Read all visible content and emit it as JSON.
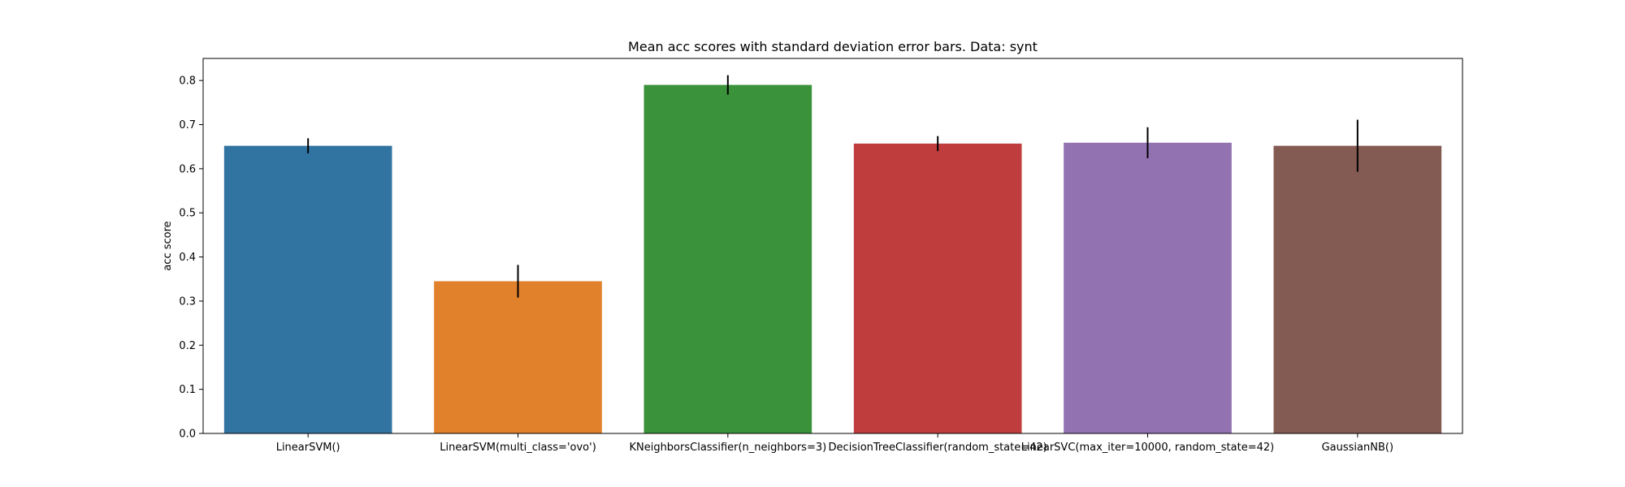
{
  "chart_data": {
    "type": "bar",
    "title": "Mean acc scores with standard deviation error bars. Data: synt",
    "xlabel": "",
    "ylabel": "acc score",
    "ylim": [
      0,
      0.85
    ],
    "yticks": [
      0.0,
      0.1,
      0.2,
      0.3,
      0.4,
      0.5,
      0.6,
      0.7,
      0.8
    ],
    "yticks_text": [
      "0.0",
      "0.1",
      "0.2",
      "0.3",
      "0.4",
      "0.5",
      "0.6",
      "0.7",
      "0.8"
    ],
    "grid": false,
    "categories": [
      "LinearSVM()",
      "LinearSVM(multi_class='ovo')",
      "KNeighborsClassifier(n_neighbors=3)",
      "DecisionTreeClassifier(random_state=42)",
      "LinearSVC(max_iter=10000, random_state=42)",
      "GaussianNB()"
    ],
    "values": [
      0.652,
      0.345,
      0.79,
      0.657,
      0.659,
      0.652
    ],
    "errors": [
      0.017,
      0.037,
      0.022,
      0.017,
      0.035,
      0.059
    ],
    "colors": [
      "#3274a1",
      "#e1812c",
      "#3a923a",
      "#c03d3e",
      "#9372b2",
      "#845b53"
    ]
  }
}
